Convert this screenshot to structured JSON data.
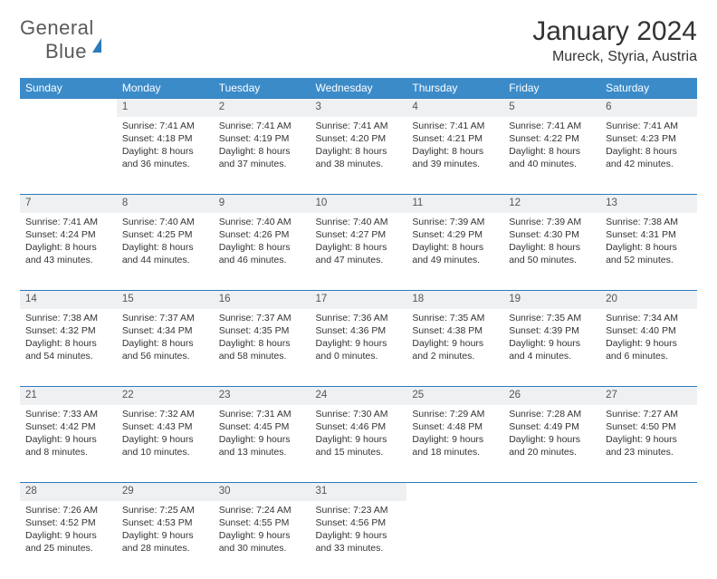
{
  "logo": {
    "part1": "General",
    "part2": "Blue"
  },
  "title": "January 2024",
  "location": "Mureck, Styria, Austria",
  "colors": {
    "header_bg": "#3b8bc9",
    "header_text": "#ffffff",
    "daynum_bg": "#eef0f1",
    "rule": "#2b7bbf",
    "logo_gray": "#5a5a5a",
    "logo_blue": "#2b7bbf"
  },
  "weekdays": [
    "Sunday",
    "Monday",
    "Tuesday",
    "Wednesday",
    "Thursday",
    "Friday",
    "Saturday"
  ],
  "weeks": [
    [
      null,
      {
        "n": "1",
        "sr": "Sunrise: 7:41 AM",
        "ss": "Sunset: 4:18 PM",
        "d1": "Daylight: 8 hours",
        "d2": "and 36 minutes."
      },
      {
        "n": "2",
        "sr": "Sunrise: 7:41 AM",
        "ss": "Sunset: 4:19 PM",
        "d1": "Daylight: 8 hours",
        "d2": "and 37 minutes."
      },
      {
        "n": "3",
        "sr": "Sunrise: 7:41 AM",
        "ss": "Sunset: 4:20 PM",
        "d1": "Daylight: 8 hours",
        "d2": "and 38 minutes."
      },
      {
        "n": "4",
        "sr": "Sunrise: 7:41 AM",
        "ss": "Sunset: 4:21 PM",
        "d1": "Daylight: 8 hours",
        "d2": "and 39 minutes."
      },
      {
        "n": "5",
        "sr": "Sunrise: 7:41 AM",
        "ss": "Sunset: 4:22 PM",
        "d1": "Daylight: 8 hours",
        "d2": "and 40 minutes."
      },
      {
        "n": "6",
        "sr": "Sunrise: 7:41 AM",
        "ss": "Sunset: 4:23 PM",
        "d1": "Daylight: 8 hours",
        "d2": "and 42 minutes."
      }
    ],
    [
      {
        "n": "7",
        "sr": "Sunrise: 7:41 AM",
        "ss": "Sunset: 4:24 PM",
        "d1": "Daylight: 8 hours",
        "d2": "and 43 minutes."
      },
      {
        "n": "8",
        "sr": "Sunrise: 7:40 AM",
        "ss": "Sunset: 4:25 PM",
        "d1": "Daylight: 8 hours",
        "d2": "and 44 minutes."
      },
      {
        "n": "9",
        "sr": "Sunrise: 7:40 AM",
        "ss": "Sunset: 4:26 PM",
        "d1": "Daylight: 8 hours",
        "d2": "and 46 minutes."
      },
      {
        "n": "10",
        "sr": "Sunrise: 7:40 AM",
        "ss": "Sunset: 4:27 PM",
        "d1": "Daylight: 8 hours",
        "d2": "and 47 minutes."
      },
      {
        "n": "11",
        "sr": "Sunrise: 7:39 AM",
        "ss": "Sunset: 4:29 PM",
        "d1": "Daylight: 8 hours",
        "d2": "and 49 minutes."
      },
      {
        "n": "12",
        "sr": "Sunrise: 7:39 AM",
        "ss": "Sunset: 4:30 PM",
        "d1": "Daylight: 8 hours",
        "d2": "and 50 minutes."
      },
      {
        "n": "13",
        "sr": "Sunrise: 7:38 AM",
        "ss": "Sunset: 4:31 PM",
        "d1": "Daylight: 8 hours",
        "d2": "and 52 minutes."
      }
    ],
    [
      {
        "n": "14",
        "sr": "Sunrise: 7:38 AM",
        "ss": "Sunset: 4:32 PM",
        "d1": "Daylight: 8 hours",
        "d2": "and 54 minutes."
      },
      {
        "n": "15",
        "sr": "Sunrise: 7:37 AM",
        "ss": "Sunset: 4:34 PM",
        "d1": "Daylight: 8 hours",
        "d2": "and 56 minutes."
      },
      {
        "n": "16",
        "sr": "Sunrise: 7:37 AM",
        "ss": "Sunset: 4:35 PM",
        "d1": "Daylight: 8 hours",
        "d2": "and 58 minutes."
      },
      {
        "n": "17",
        "sr": "Sunrise: 7:36 AM",
        "ss": "Sunset: 4:36 PM",
        "d1": "Daylight: 9 hours",
        "d2": "and 0 minutes."
      },
      {
        "n": "18",
        "sr": "Sunrise: 7:35 AM",
        "ss": "Sunset: 4:38 PM",
        "d1": "Daylight: 9 hours",
        "d2": "and 2 minutes."
      },
      {
        "n": "19",
        "sr": "Sunrise: 7:35 AM",
        "ss": "Sunset: 4:39 PM",
        "d1": "Daylight: 9 hours",
        "d2": "and 4 minutes."
      },
      {
        "n": "20",
        "sr": "Sunrise: 7:34 AM",
        "ss": "Sunset: 4:40 PM",
        "d1": "Daylight: 9 hours",
        "d2": "and 6 minutes."
      }
    ],
    [
      {
        "n": "21",
        "sr": "Sunrise: 7:33 AM",
        "ss": "Sunset: 4:42 PM",
        "d1": "Daylight: 9 hours",
        "d2": "and 8 minutes."
      },
      {
        "n": "22",
        "sr": "Sunrise: 7:32 AM",
        "ss": "Sunset: 4:43 PM",
        "d1": "Daylight: 9 hours",
        "d2": "and 10 minutes."
      },
      {
        "n": "23",
        "sr": "Sunrise: 7:31 AM",
        "ss": "Sunset: 4:45 PM",
        "d1": "Daylight: 9 hours",
        "d2": "and 13 minutes."
      },
      {
        "n": "24",
        "sr": "Sunrise: 7:30 AM",
        "ss": "Sunset: 4:46 PM",
        "d1": "Daylight: 9 hours",
        "d2": "and 15 minutes."
      },
      {
        "n": "25",
        "sr": "Sunrise: 7:29 AM",
        "ss": "Sunset: 4:48 PM",
        "d1": "Daylight: 9 hours",
        "d2": "and 18 minutes."
      },
      {
        "n": "26",
        "sr": "Sunrise: 7:28 AM",
        "ss": "Sunset: 4:49 PM",
        "d1": "Daylight: 9 hours",
        "d2": "and 20 minutes."
      },
      {
        "n": "27",
        "sr": "Sunrise: 7:27 AM",
        "ss": "Sunset: 4:50 PM",
        "d1": "Daylight: 9 hours",
        "d2": "and 23 minutes."
      }
    ],
    [
      {
        "n": "28",
        "sr": "Sunrise: 7:26 AM",
        "ss": "Sunset: 4:52 PM",
        "d1": "Daylight: 9 hours",
        "d2": "and 25 minutes."
      },
      {
        "n": "29",
        "sr": "Sunrise: 7:25 AM",
        "ss": "Sunset: 4:53 PM",
        "d1": "Daylight: 9 hours",
        "d2": "and 28 minutes."
      },
      {
        "n": "30",
        "sr": "Sunrise: 7:24 AM",
        "ss": "Sunset: 4:55 PM",
        "d1": "Daylight: 9 hours",
        "d2": "and 30 minutes."
      },
      {
        "n": "31",
        "sr": "Sunrise: 7:23 AM",
        "ss": "Sunset: 4:56 PM",
        "d1": "Daylight: 9 hours",
        "d2": "and 33 minutes."
      },
      null,
      null,
      null
    ]
  ]
}
